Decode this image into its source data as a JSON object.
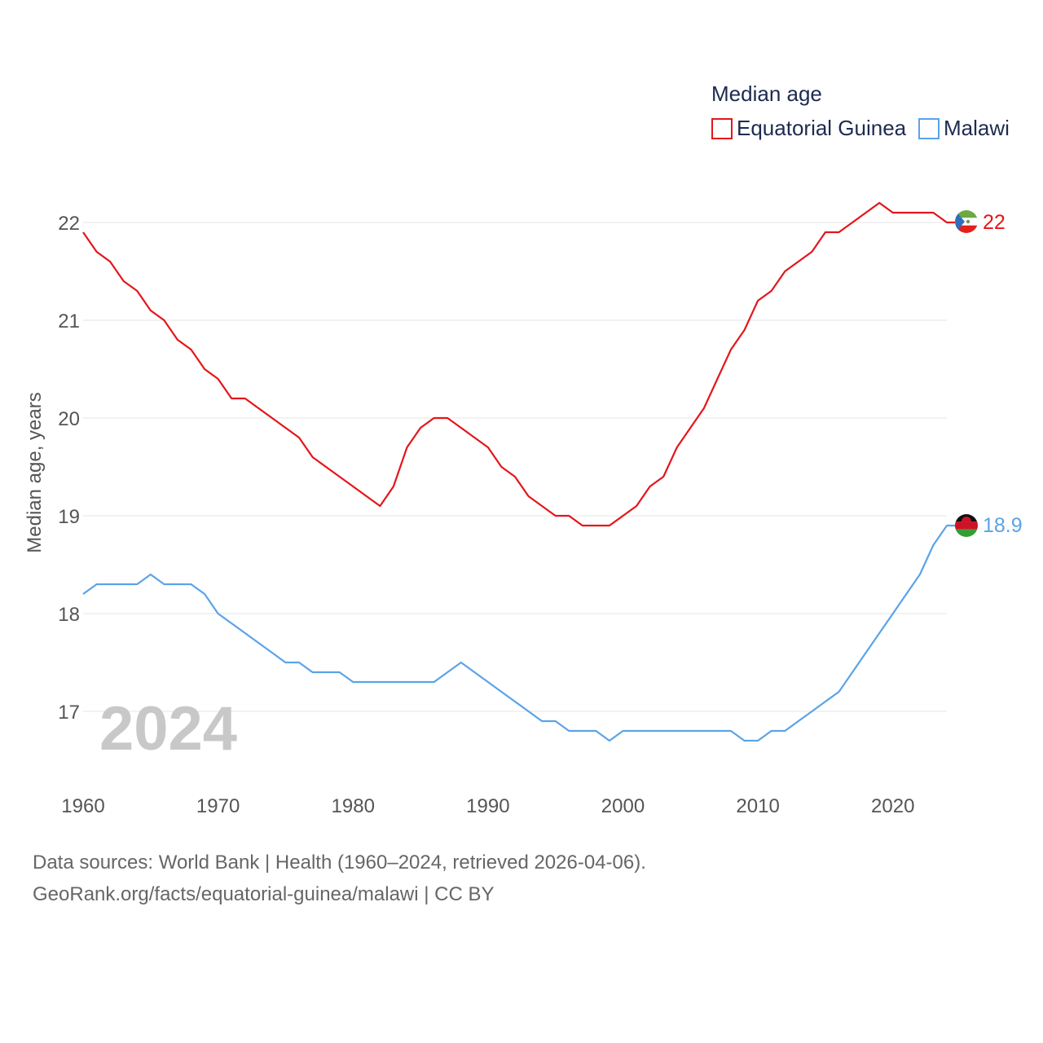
{
  "chart_data": {
    "type": "line",
    "legend_title": "Median age",
    "ylabel": "Median age, years",
    "xlabel": "",
    "year_label": "2024",
    "ylim": [
      16.2,
      22.5
    ],
    "xlim": [
      1960,
      2024
    ],
    "yticks": [
      17,
      18,
      19,
      20,
      21,
      22
    ],
    "ytick_labels": [
      "17",
      "18",
      "19",
      "20",
      "21",
      "22"
    ],
    "xticks": [
      1960,
      1970,
      1980,
      1990,
      2000,
      2010,
      2020
    ],
    "xtick_labels": [
      "1960",
      "1970",
      "1980",
      "1990",
      "2000",
      "2010",
      "2020"
    ],
    "grid": true,
    "legend_position": "top-right",
    "x": [
      1960,
      1961,
      1962,
      1963,
      1964,
      1965,
      1966,
      1967,
      1968,
      1969,
      1970,
      1971,
      1972,
      1973,
      1974,
      1975,
      1976,
      1977,
      1978,
      1979,
      1980,
      1981,
      1982,
      1983,
      1984,
      1985,
      1986,
      1987,
      1988,
      1989,
      1990,
      1991,
      1992,
      1993,
      1994,
      1995,
      1996,
      1997,
      1998,
      1999,
      2000,
      2001,
      2002,
      2003,
      2004,
      2005,
      2006,
      2007,
      2008,
      2009,
      2010,
      2011,
      2012,
      2013,
      2014,
      2015,
      2016,
      2017,
      2018,
      2019,
      2020,
      2021,
      2022,
      2023,
      2024
    ],
    "series": [
      {
        "name": "Equatorial Guinea",
        "color": "#e3161b",
        "end_label": "22",
        "flag": "equatorial-guinea-flag-icon",
        "values": [
          21.9,
          21.7,
          21.6,
          21.4,
          21.3,
          21.1,
          21.0,
          20.8,
          20.7,
          20.5,
          20.4,
          20.2,
          20.2,
          20.1,
          20.0,
          19.9,
          19.8,
          19.6,
          19.5,
          19.4,
          19.3,
          19.2,
          19.1,
          19.3,
          19.7,
          19.9,
          20.0,
          20.0,
          19.9,
          19.8,
          19.7,
          19.5,
          19.4,
          19.2,
          19.1,
          19.0,
          19.0,
          18.9,
          18.9,
          18.9,
          19.0,
          19.1,
          19.3,
          19.4,
          19.7,
          19.9,
          20.1,
          20.4,
          20.7,
          20.9,
          21.2,
          21.3,
          21.5,
          21.6,
          21.7,
          21.9,
          21.9,
          22.0,
          22.1,
          22.2,
          22.1,
          22.1,
          22.1,
          22.1,
          22.0
        ]
      },
      {
        "name": "Malawi",
        "color": "#5ba3e8",
        "end_label": "18.9",
        "flag": "malawi-flag-icon",
        "values": [
          18.2,
          18.3,
          18.3,
          18.3,
          18.3,
          18.4,
          18.3,
          18.3,
          18.3,
          18.2,
          18.0,
          17.9,
          17.8,
          17.7,
          17.6,
          17.5,
          17.5,
          17.4,
          17.4,
          17.4,
          17.3,
          17.3,
          17.3,
          17.3,
          17.3,
          17.3,
          17.3,
          17.4,
          17.5,
          17.4,
          17.3,
          17.2,
          17.1,
          17.0,
          16.9,
          16.9,
          16.8,
          16.8,
          16.8,
          16.7,
          16.8,
          16.8,
          16.8,
          16.8,
          16.8,
          16.8,
          16.8,
          16.8,
          16.8,
          16.7,
          16.7,
          16.8,
          16.8,
          16.9,
          17.0,
          17.1,
          17.2,
          17.4,
          17.6,
          17.8,
          18.0,
          18.2,
          18.4,
          18.7,
          18.9
        ]
      }
    ]
  },
  "footer": {
    "line1": "Data sources: World Bank | Health (1960–2024, retrieved 2026-04-06).",
    "line2": "GeoRank.org/facts/equatorial-guinea/malawi | CC BY"
  }
}
